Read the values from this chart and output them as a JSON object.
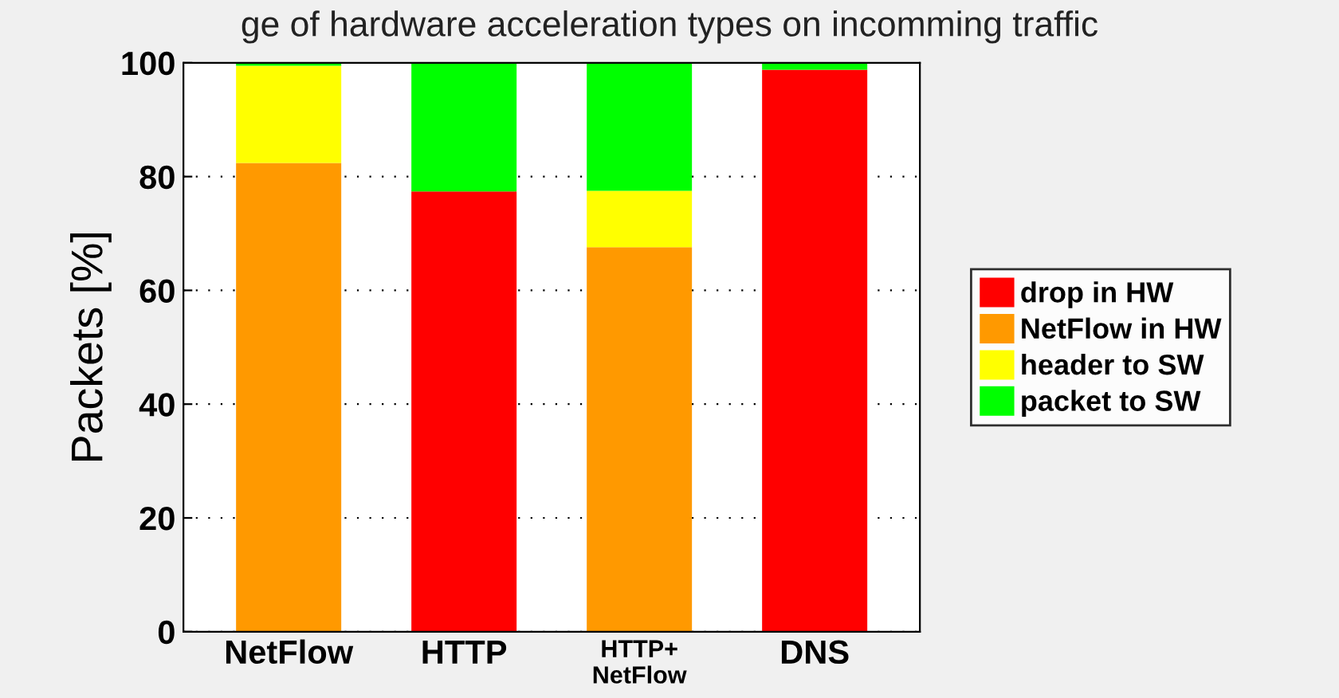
{
  "chart_data": {
    "type": "bar",
    "title": "ge of hardware acceleration types on incomming traffic",
    "ylabel": "Packets [%]",
    "categories": [
      "NetFlow",
      "HTTP",
      "HTTP+\nNetFlow",
      "DNS"
    ],
    "stacked": true,
    "series": [
      {
        "name": "drop in HW",
        "color": "#ff0000",
        "values": [
          0,
          77.4,
          0,
          98.8
        ]
      },
      {
        "name": "NetFlow in HW",
        "color": "#ff9900",
        "values": [
          82.4,
          0,
          67.6,
          0
        ]
      },
      {
        "name": "header to SW",
        "color": "#ffff00",
        "values": [
          17.1,
          0,
          9.9,
          0
        ]
      },
      {
        "name": "packet to SW",
        "color": "#00ff00",
        "values": [
          0.5,
          22.6,
          22.5,
          1.2
        ]
      }
    ],
    "ylim": [
      0,
      100
    ],
    "yticks": [
      0,
      20,
      40,
      60,
      80,
      100
    ],
    "grid": "y",
    "legend": "right"
  }
}
